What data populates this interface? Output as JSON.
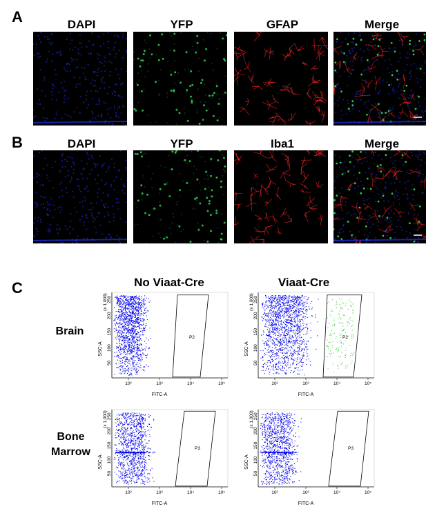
{
  "panels": {
    "a": {
      "letter": "A",
      "labels": [
        "DAPI",
        "YFP",
        "GFAP",
        "Merge"
      ]
    },
    "b": {
      "letter": "B",
      "labels": [
        "DAPI",
        "YFP",
        "Iba1",
        "Merge"
      ]
    },
    "c": {
      "letter": "C",
      "col_titles": [
        "No Viaat-Cre",
        "Viaat-Cre"
      ],
      "row_labels": [
        "Brain",
        "Bone\nMarrow"
      ],
      "xlabel": "FITC-A",
      "ylabel": "SSC-A",
      "y_multiplier": "(x 1,000)",
      "gate_brain": "P2",
      "gate_marrow": "P3",
      "x_ticks": [
        "10²",
        "10³",
        "10⁴",
        "10⁵"
      ],
      "y_ticks": [
        "50",
        "100",
        "150",
        "200",
        "250"
      ]
    }
  },
  "colors": {
    "dapi": "#2233ee",
    "yfp": "#33dd55",
    "red": "#ee2222",
    "scatter_blue": "#0000ee",
    "scatter_green": "#44cc44"
  }
}
